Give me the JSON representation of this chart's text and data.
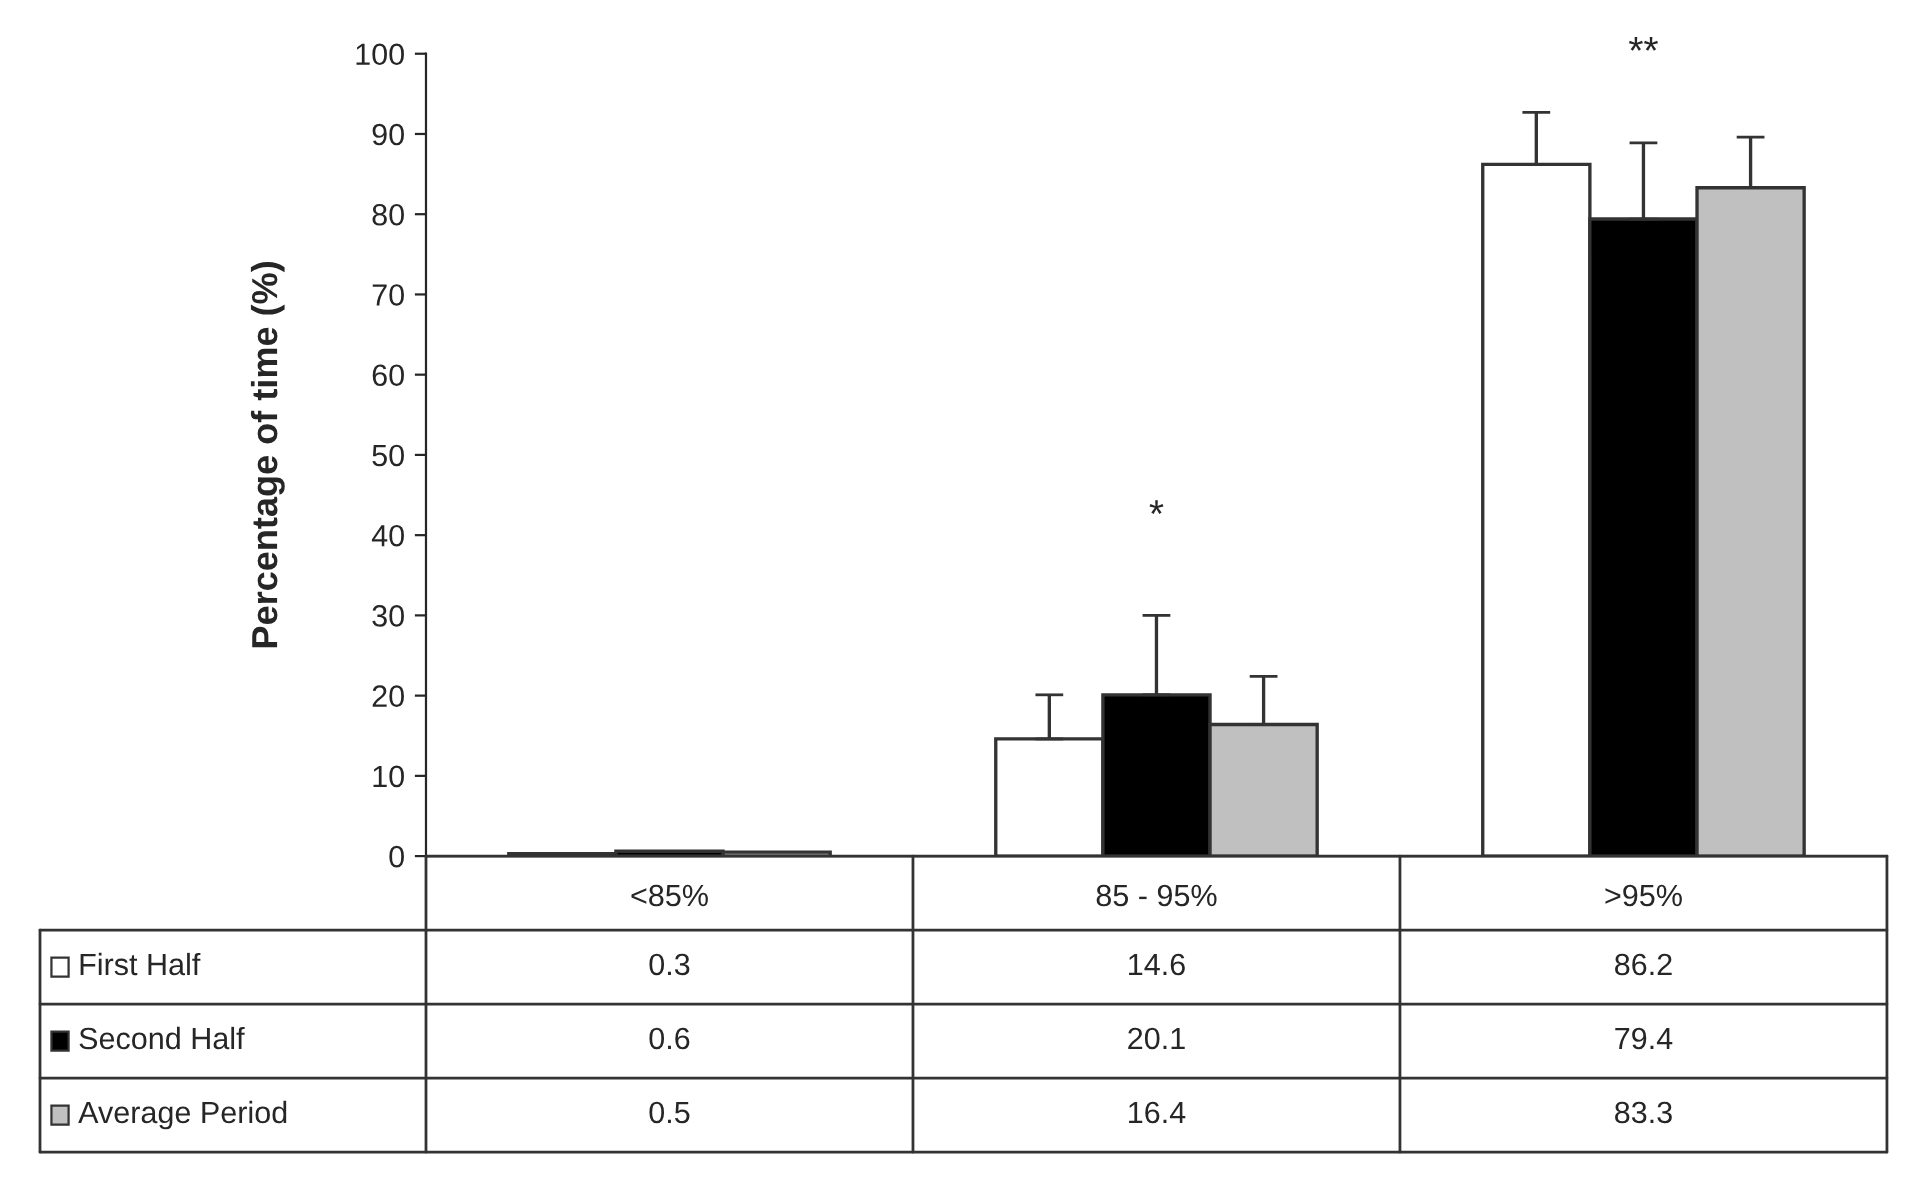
{
  "chart_data": {
    "type": "bar",
    "ylabel": "Percentage of time (%)",
    "categories": [
      "<85%",
      "85 - 95%",
      ">95%"
    ],
    "series": [
      {
        "name": "First Half",
        "color": "#ffffff",
        "values": [
          0.3,
          14.6,
          86.2
        ],
        "errors": [
          null,
          5.5,
          6.5
        ],
        "value_labels": [
          "0.3",
          "14.6",
          "86.2"
        ]
      },
      {
        "name": "Second Half",
        "color": "#000000",
        "values": [
          0.6,
          20.1,
          79.4
        ],
        "errors": [
          null,
          9.9,
          9.5
        ],
        "value_labels": [
          "0.6",
          "20.1",
          "79.4"
        ]
      },
      {
        "name": "Average Period",
        "color": "#c0c0c0",
        "values": [
          0.5,
          16.4,
          83.3
        ],
        "errors": [
          null,
          6.0,
          6.3
        ],
        "value_labels": [
          "0.5",
          "16.4",
          "83.3"
        ]
      }
    ],
    "ylim": [
      0,
      100
    ],
    "yticks": [
      0,
      10,
      20,
      30,
      40,
      50,
      60,
      70,
      80,
      90,
      100
    ],
    "annotations": [
      "*",
      "**"
    ],
    "legend": "bottom",
    "grid": false
  }
}
